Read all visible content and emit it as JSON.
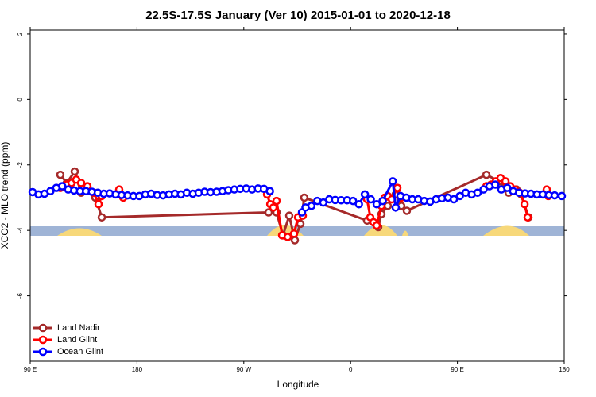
{
  "chart_data": {
    "type": "line",
    "title": "22.5S-17.5S January (Ver 10)   2015-01-01 to 2020-12-18",
    "x_label": "Longitude",
    "y_label": "XCO2 - MLO trend (ppm)",
    "xlim": [
      90,
      540
    ],
    "xticks": [
      {
        "value": 90,
        "label": "90 E"
      },
      {
        "value": 180,
        "label": "180"
      },
      {
        "value": 270,
        "label": "90 W"
      },
      {
        "value": 360,
        "label": "0"
      },
      {
        "value": 450,
        "label": "90 E"
      },
      {
        "value": 540,
        "label": "180"
      }
    ],
    "ylim": [
      -8.0,
      2.12
    ],
    "yticks": [
      2,
      0,
      -2,
      -4,
      -6
    ],
    "legend": "bottom-left",
    "series": [
      {
        "name": "Land Nadir",
        "color": "#a52a2a",
        "x": [
          115.4,
          120.8,
          127.5,
          132.9,
          139.6,
          144.9,
          150.3,
          290.9,
          297.6,
          303,
          308.3,
          313,
          317.7,
          321,
          373.9,
          383.3,
          386,
          391.3,
          398,
          402.7,
          407.4,
          474.4,
          485.1,
          493.2,
          499.8,
          503.9,
          509.9
        ],
        "values": [
          -2.3,
          -2.55,
          -2.2,
          -2.85,
          -2.8,
          -3.0,
          -3.6,
          -3.45,
          -3.45,
          -4.15,
          -3.55,
          -4.3,
          -3.8,
          -3.0,
          -3.7,
          -3.9,
          -3.5,
          -3.25,
          -2.9,
          -3.25,
          -3.4,
          -2.3,
          -2.5,
          -2.85,
          -2.75,
          -2.9,
          -3.6
        ]
      },
      {
        "name": "Land Glint",
        "color": "#ff0000",
        "x": [
          115.4,
          120.8,
          124.8,
          128.8,
          132.9,
          138.2,
          143.6,
          147.6,
          150.3,
          151,
          165,
          168.4,
          170,
          289.6,
          292.3,
          294.9,
          297.6,
          302.3,
          307,
          312.3,
          315.7,
          319.7,
          330,
          373.9,
          376.6,
          379.3,
          382,
          386,
          388.7,
          391.3,
          394.7,
          399.4,
          402.7,
          420,
          474.4,
          478.4,
          482.4,
          486.4,
          490.5,
          494.5,
          498.5,
          502.5,
          506.6,
          509.2,
          515,
          525.3,
          526.6
        ],
        "values": [
          -2.7,
          -2.6,
          -2.55,
          -2.45,
          -2.55,
          -2.65,
          -2.85,
          -3.2,
          -2.95,
          null,
          -2.75,
          -3.0,
          null,
          -2.9,
          -3.2,
          -3.3,
          -3.1,
          -4.15,
          -4.2,
          -4.1,
          -3.6,
          -3.55,
          null,
          -3.05,
          -3.6,
          -3.75,
          -3.85,
          -3.25,
          -3.0,
          -2.95,
          -3.05,
          -2.7,
          -3.0,
          null,
          -2.65,
          -2.6,
          -2.5,
          -2.4,
          -2.5,
          -2.65,
          -2.75,
          -2.85,
          -3.2,
          -3.6,
          null,
          -2.75,
          -2.95
        ]
      },
      {
        "name": "Ocean Glint",
        "color": "#0000ff",
        "x": [
          92,
          97,
          102,
          107,
          112,
          117,
          122,
          127,
          132,
          137,
          142,
          147,
          152,
          157,
          162,
          167,
          172,
          177,
          182,
          187,
          192,
          197,
          202,
          207,
          212,
          217,
          222,
          227,
          232,
          237,
          242,
          247,
          252,
          257,
          262,
          267,
          272,
          277,
          282,
          287,
          292,
          305,
          319,
          322,
          327,
          332,
          337,
          342,
          347,
          352,
          357,
          362,
          367,
          372,
          377,
          382,
          387,
          395.5,
          398,
          402,
          407,
          412,
          417,
          422,
          427,
          432,
          437,
          442,
          447,
          452,
          457,
          462,
          467,
          472,
          477,
          482,
          487,
          492,
          497,
          502,
          507,
          512,
          517,
          522,
          527,
          532,
          538
        ],
        "values": [
          -2.83,
          -2.9,
          -2.88,
          -2.8,
          -2.7,
          -2.65,
          -2.75,
          -2.78,
          -2.8,
          -2.8,
          -2.82,
          -2.85,
          -2.88,
          -2.87,
          -2.9,
          -2.92,
          -2.93,
          -2.95,
          -2.95,
          -2.9,
          -2.88,
          -2.92,
          -2.93,
          -2.9,
          -2.88,
          -2.9,
          -2.85,
          -2.88,
          -2.85,
          -2.82,
          -2.83,
          -2.82,
          -2.8,
          -2.77,
          -2.75,
          -2.73,
          -2.72,
          -2.75,
          -2.72,
          -2.73,
          -2.8,
          null,
          -3.45,
          -3.3,
          -3.25,
          -3.1,
          -3.15,
          -3.05,
          -3.07,
          -3.08,
          -3.08,
          -3.1,
          -3.2,
          -2.9,
          -3.05,
          -3.2,
          -3.1,
          -2.5,
          -3.3,
          -2.95,
          -3.0,
          -3.05,
          -3.05,
          -3.1,
          -3.12,
          -3.05,
          -3.02,
          -3.0,
          -3.05,
          -2.95,
          -2.85,
          -2.9,
          -2.85,
          -2.75,
          -2.65,
          -2.6,
          -2.75,
          -2.7,
          -2.8,
          -2.85,
          -2.87,
          -2.88,
          -2.9,
          -2.9,
          -2.92,
          -2.93,
          -2.95
        ]
      }
    ]
  }
}
